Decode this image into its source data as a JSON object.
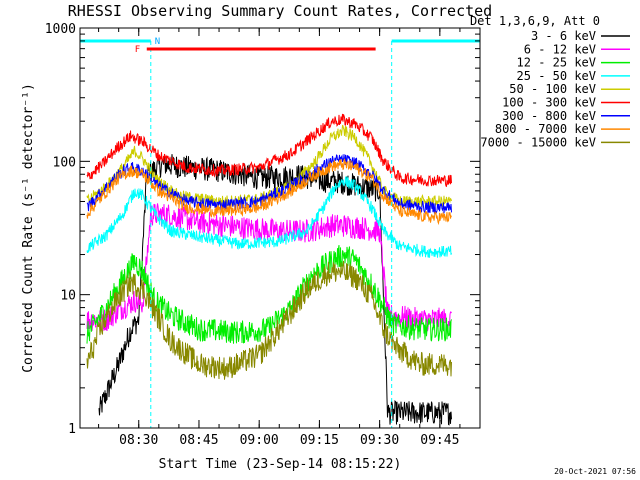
{
  "chart_data": {
    "type": "line",
    "title": "RHESSI Observing Summary Count Rates, Corrected",
    "xlabel": "Start Time (23-Sep-14 08:15:22)",
    "ylabel": "Corrected Count Rate (s⁻¹ detector⁻¹)",
    "y_scale": "log",
    "ylim": [
      1,
      1000
    ],
    "xlim": [
      "08:15:22",
      "09:55:00"
    ],
    "x_ticks": [
      "08:30",
      "08:45",
      "09:00",
      "09:15",
      "09:30",
      "09:45"
    ],
    "y_ticks": [
      "1",
      "10",
      "100",
      "1000"
    ],
    "legend_title": "Det 1,3,6,9, Att 0",
    "legend_position": "right",
    "timestamp": "20-Oct-2021 07:56",
    "annotations": {
      "night_label": "N",
      "flare_label": "F",
      "night_intervals": [
        [
          "08:15:22",
          "08:33:00"
        ],
        [
          "09:33:00",
          "09:55:00"
        ]
      ],
      "flare_interval": [
        "08:32:00",
        "09:29:00"
      ]
    },
    "series": [
      {
        "name": "3 - 6 keV",
        "color": "#000000",
        "points": [
          [
            "08:20",
            1.3
          ],
          [
            "08:25",
            3.0
          ],
          [
            "08:28",
            5.5
          ],
          [
            "08:30",
            6.5
          ],
          [
            "08:32",
            80
          ],
          [
            "08:36",
            95
          ],
          [
            "08:42",
            90
          ],
          [
            "08:50",
            85
          ],
          [
            "09:00",
            75
          ],
          [
            "09:10",
            78
          ],
          [
            "09:15",
            72
          ],
          [
            "09:20",
            70
          ],
          [
            "09:25",
            65
          ],
          [
            "09:30",
            60
          ],
          [
            "09:32",
            1.3
          ],
          [
            "09:40",
            1.3
          ],
          [
            "09:48",
            1.3
          ]
        ]
      },
      {
        "name": "6 - 12 keV",
        "color": "#ff00ff",
        "points": [
          [
            "08:17",
            6.5
          ],
          [
            "08:22",
            6.5
          ],
          [
            "08:26",
            8.0
          ],
          [
            "08:29",
            9.0
          ],
          [
            "08:31",
            8.5
          ],
          [
            "08:33",
            40
          ],
          [
            "08:37",
            40
          ],
          [
            "08:45",
            35
          ],
          [
            "08:55",
            32
          ],
          [
            "09:05",
            30
          ],
          [
            "09:12",
            30
          ],
          [
            "09:18",
            33
          ],
          [
            "09:21",
            33
          ],
          [
            "09:25",
            32
          ],
          [
            "09:30",
            30
          ],
          [
            "09:32",
            7.0
          ],
          [
            "09:40",
            6.5
          ],
          [
            "09:48",
            6.5
          ]
        ]
      },
      {
        "name": "12 - 25 keV",
        "color": "#00ee00",
        "points": [
          [
            "08:17",
            5.0
          ],
          [
            "08:22",
            8.0
          ],
          [
            "08:26",
            13
          ],
          [
            "08:29",
            18
          ],
          [
            "08:31",
            15
          ],
          [
            "08:34",
            9
          ],
          [
            "08:38",
            7
          ],
          [
            "08:45",
            5.5
          ],
          [
            "08:55",
            5.2
          ],
          [
            "09:02",
            5.5
          ],
          [
            "09:08",
            8
          ],
          [
            "09:13",
            14
          ],
          [
            "09:18",
            18
          ],
          [
            "09:21",
            20
          ],
          [
            "09:24",
            18
          ],
          [
            "09:28",
            12
          ],
          [
            "09:31",
            8
          ],
          [
            "09:33",
            6
          ],
          [
            "09:40",
            5.5
          ],
          [
            "09:48",
            5.5
          ]
        ]
      },
      {
        "name": "25 - 50 keV",
        "color": "#00ffff",
        "points": [
          [
            "08:17",
            22
          ],
          [
            "08:22",
            28
          ],
          [
            "08:26",
            40
          ],
          [
            "08:29",
            60
          ],
          [
            "08:31",
            55
          ],
          [
            "08:34",
            40
          ],
          [
            "08:38",
            30
          ],
          [
            "08:45",
            27
          ],
          [
            "08:55",
            24
          ],
          [
            "09:05",
            25
          ],
          [
            "09:12",
            30
          ],
          [
            "09:16",
            45
          ],
          [
            "09:19",
            65
          ],
          [
            "09:21",
            72
          ],
          [
            "09:24",
            65
          ],
          [
            "09:28",
            45
          ],
          [
            "09:31",
            30
          ],
          [
            "09:35",
            23
          ],
          [
            "09:42",
            21
          ],
          [
            "09:48",
            21
          ]
        ]
      },
      {
        "name": "50 - 100 keV",
        "color": "#cccc00",
        "points": [
          [
            "08:17",
            50
          ],
          [
            "08:22",
            65
          ],
          [
            "08:26",
            90
          ],
          [
            "08:29",
            120
          ],
          [
            "08:31",
            105
          ],
          [
            "08:34",
            75
          ],
          [
            "08:40",
            55
          ],
          [
            "08:50",
            50
          ],
          [
            "09:00",
            52
          ],
          [
            "09:08",
            65
          ],
          [
            "09:14",
            100
          ],
          [
            "09:18",
            150
          ],
          [
            "09:21",
            170
          ],
          [
            "09:24",
            150
          ],
          [
            "09:28",
            95
          ],
          [
            "09:31",
            60
          ],
          [
            "09:35",
            50
          ],
          [
            "09:42",
            50
          ],
          [
            "09:48",
            50
          ]
        ]
      },
      {
        "name": "100 - 300 keV",
        "color": "#ff0000",
        "points": [
          [
            "08:17",
            75
          ],
          [
            "08:21",
            95
          ],
          [
            "08:25",
            130
          ],
          [
            "08:28",
            155
          ],
          [
            "08:31",
            140
          ],
          [
            "08:35",
            110
          ],
          [
            "08:42",
            90
          ],
          [
            "08:50",
            85
          ],
          [
            "09:00",
            90
          ],
          [
            "09:08",
            115
          ],
          [
            "09:14",
            160
          ],
          [
            "09:18",
            200
          ],
          [
            "09:21",
            205
          ],
          [
            "09:24",
            190
          ],
          [
            "09:28",
            150
          ],
          [
            "09:31",
            100
          ],
          [
            "09:35",
            75
          ],
          [
            "09:42",
            72
          ],
          [
            "09:48",
            72
          ]
        ]
      },
      {
        "name": "300 - 800 keV",
        "color": "#0000ff",
        "points": [
          [
            "08:17",
            45
          ],
          [
            "08:21",
            60
          ],
          [
            "08:25",
            80
          ],
          [
            "08:28",
            90
          ],
          [
            "08:31",
            85
          ],
          [
            "08:35",
            65
          ],
          [
            "08:42",
            50
          ],
          [
            "08:50",
            47
          ],
          [
            "09:00",
            50
          ],
          [
            "09:08",
            65
          ],
          [
            "09:14",
            85
          ],
          [
            "09:18",
            100
          ],
          [
            "09:21",
            103
          ],
          [
            "09:24",
            97
          ],
          [
            "09:28",
            80
          ],
          [
            "09:31",
            60
          ],
          [
            "09:35",
            48
          ],
          [
            "09:42",
            45
          ],
          [
            "09:48",
            45
          ]
        ]
      },
      {
        "name": "800 - 7000 keV",
        "color": "#ff8800",
        "points": [
          [
            "08:17",
            40
          ],
          [
            "08:21",
            55
          ],
          [
            "08:25",
            75
          ],
          [
            "08:28",
            85
          ],
          [
            "08:31",
            80
          ],
          [
            "08:35",
            60
          ],
          [
            "08:42",
            45
          ],
          [
            "08:50",
            42
          ],
          [
            "09:00",
            45
          ],
          [
            "09:08",
            60
          ],
          [
            "09:14",
            80
          ],
          [
            "09:18",
            92
          ],
          [
            "09:21",
            95
          ],
          [
            "09:24",
            90
          ],
          [
            "09:28",
            75
          ],
          [
            "09:31",
            55
          ],
          [
            "09:35",
            42
          ],
          [
            "09:42",
            38
          ],
          [
            "09:48",
            38
          ]
        ]
      },
      {
        "name": "7000 - 15000 keV",
        "color": "#888800",
        "points": [
          [
            "08:17",
            3.0
          ],
          [
            "08:21",
            6.0
          ],
          [
            "08:25",
            9.5
          ],
          [
            "08:28",
            12.5
          ],
          [
            "08:31",
            11
          ],
          [
            "08:34",
            7.5
          ],
          [
            "08:38",
            4.5
          ],
          [
            "08:45",
            3.0
          ],
          [
            "08:52",
            2.8
          ],
          [
            "09:00",
            3.5
          ],
          [
            "09:06",
            6.0
          ],
          [
            "09:12",
            11
          ],
          [
            "09:17",
            14.5
          ],
          [
            "09:20",
            15
          ],
          [
            "09:24",
            13.5
          ],
          [
            "09:28",
            9.5
          ],
          [
            "09:31",
            5.5
          ],
          [
            "09:34",
            4.0
          ],
          [
            "09:40",
            3.0
          ],
          [
            "09:48",
            3.0
          ]
        ]
      }
    ]
  }
}
